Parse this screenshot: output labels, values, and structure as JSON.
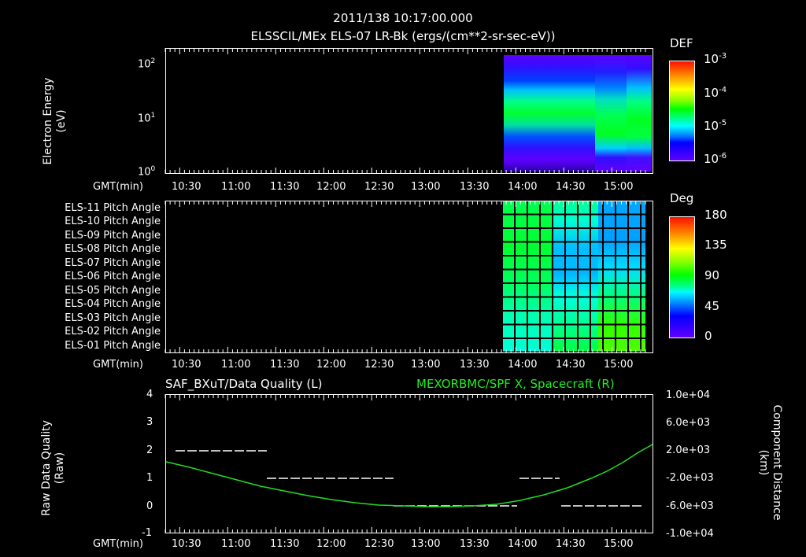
{
  "header": {
    "timestamp": "2011/138 10:17:00.000",
    "subtitle": "ELSSCIL/MEx ELS-07 LR-Bk  (ergs/(cm**2-sr-sec-eV))"
  },
  "panel1": {
    "ylabel_line1": "Electron Energy",
    "ylabel_line2": "(eV)",
    "yticks": [
      "10^0",
      "10^1",
      "10^2"
    ],
    "colorbar_title": "DEF",
    "colorbar_ticks": [
      "10^-3",
      "10^-4",
      "10^-5",
      "10^-6"
    ],
    "xaxis_label": "GMT(min)"
  },
  "panel2": {
    "row_labels": [
      "ELS-11 Pitch Angle",
      "ELS-10 Pitch Angle",
      "ELS-09 Pitch Angle",
      "ELS-08 Pitch Angle",
      "ELS-07 Pitch Angle",
      "ELS-06 Pitch Angle",
      "ELS-05 Pitch Angle",
      "ELS-04 Pitch Angle",
      "ELS-03 Pitch Angle",
      "ELS-02 Pitch Angle",
      "ELS-01 Pitch Angle"
    ],
    "colorbar_title": "Deg",
    "colorbar_ticks": [
      "180",
      "135",
      "90",
      "45",
      "0"
    ],
    "xaxis_label": "GMT(min)"
  },
  "panel3": {
    "left_title": "SAF_BXuT/Data Quality (L)",
    "right_title": "MEXORBMC/SPF X, Spacecraft (R)",
    "ylabel_left_line1": "Raw Data Quality",
    "ylabel_left_line2": "(Raw)",
    "ylabel_right_line1": "Component Distance",
    "ylabel_right_line2": "(km)",
    "yticks_left": [
      "4",
      "3",
      "2",
      "1",
      "0",
      "-1"
    ],
    "yticks_right": [
      "1.0e+04",
      "6.0e+03",
      "2.0e+03",
      "-2.0e+03",
      "-6.0e+03",
      "-1.0e+04"
    ],
    "xaxis_label": "GMT(min)"
  },
  "xticks": [
    "10:30",
    "11:00",
    "11:30",
    "12:00",
    "12:30",
    "13:00",
    "13:30",
    "14:00",
    "14:30",
    "15:00"
  ],
  "colors": {
    "background": "#000000",
    "axes": "#ffffff",
    "spacecraft_line": "#22dd22",
    "right_title": "#22ee22"
  },
  "chart_data": [
    {
      "type": "heatmap",
      "title": "ELSSCIL/MEx ELS-07 LR-Bk (ergs/(cm**2-sr-sec-eV))",
      "xlabel": "GMT(min)",
      "ylabel": "Electron Energy (eV)",
      "yscale": "log",
      "ylim": [
        1,
        150
      ],
      "x_range": [
        "10:17",
        "15:20"
      ],
      "data_present_from": "13:47",
      "colorbar": {
        "label": "DEF",
        "scale": "log",
        "range": [
          1e-06,
          0.001
        ]
      },
      "description": "Peak flux ~1e-4 near 8-30 eV before 14:40, shifting down to ~3-10 eV after 14:40"
    },
    {
      "type": "heatmap",
      "title": "ELS Pitch Angle",
      "xlabel": "GMT(min)",
      "rows": [
        "ELS-11",
        "ELS-10",
        "ELS-09",
        "ELS-08",
        "ELS-07",
        "ELS-06",
        "ELS-05",
        "ELS-04",
        "ELS-03",
        "ELS-02",
        "ELS-01"
      ],
      "data_present_from": "13:47",
      "colorbar": {
        "label": "Deg",
        "range": [
          0,
          180
        ]
      },
      "description": "~100 deg early for upper anodes, ~60-70 deg for lower anodes; mid-period 40-60 deg mid anodes; ~100-110 deg lower anodes late"
    },
    {
      "type": "line",
      "title": "SAF_BXuT/Data Quality (L) and MEXORBMC/SPF X, Spacecraft (R)",
      "xlabel": "GMT(min)",
      "series": [
        {
          "name": "Data Quality (L)",
          "axis": "left",
          "ylim": [
            -1,
            4
          ],
          "segments": [
            {
              "from": "10:20",
              "to": "11:17",
              "value": 2
            },
            {
              "from": "11:17",
              "to": "12:35",
              "value": 1
            },
            {
              "from": "12:35",
              "to": "13:57",
              "value": 0
            },
            {
              "from": "13:57",
              "to": "14:22",
              "value": 1
            },
            {
              "from": "14:22",
              "to": "15:13",
              "value": 0
            }
          ]
        },
        {
          "name": "MEXORBMC/SPF X, Spacecraft (R)",
          "axis": "right",
          "ylim": [
            -10000,
            10000
          ],
          "x": [
            "10:17",
            "10:30",
            "11:00",
            "11:30",
            "12:00",
            "12:30",
            "13:00",
            "13:30",
            "13:50",
            "14:00",
            "14:30",
            "15:00",
            "15:20"
          ],
          "values": [
            2300,
            1700,
            400,
            -900,
            -2400,
            -3600,
            -4700,
            -5200,
            -5100,
            -4800,
            -3200,
            -1000,
            2500
          ]
        }
      ]
    }
  ]
}
